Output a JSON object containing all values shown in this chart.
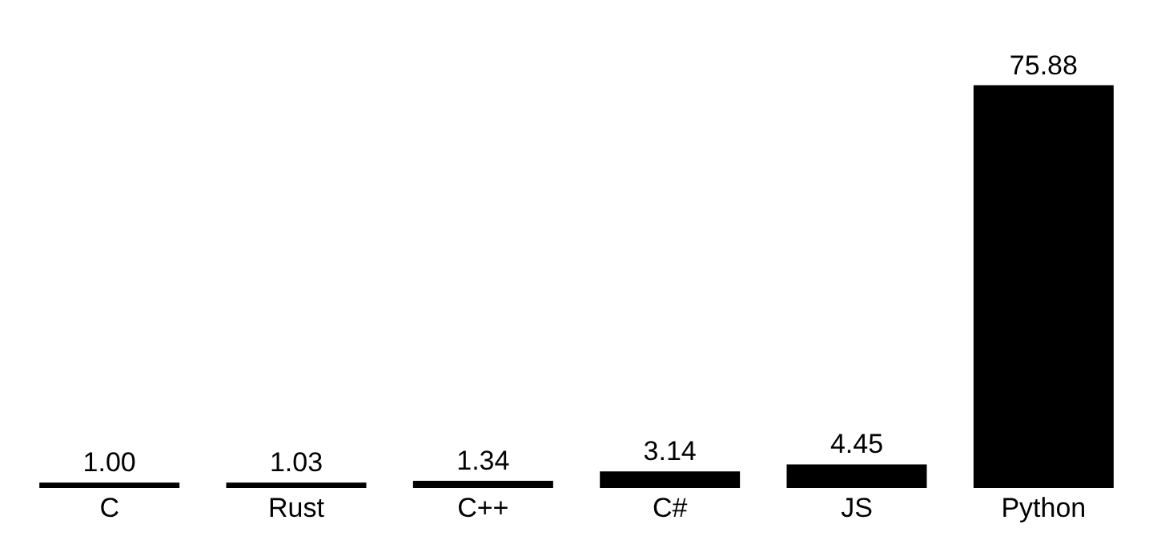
{
  "chart_data": {
    "type": "bar",
    "categories": [
      "C",
      "Rust",
      "C++",
      "C#",
      "JS",
      "Python"
    ],
    "values": [
      1.0,
      1.03,
      1.34,
      3.14,
      4.45,
      75.88
    ],
    "value_labels": [
      "1.00",
      "1.03",
      "1.34",
      "3.14",
      "4.45",
      "75.88"
    ],
    "color": "#000000"
  }
}
